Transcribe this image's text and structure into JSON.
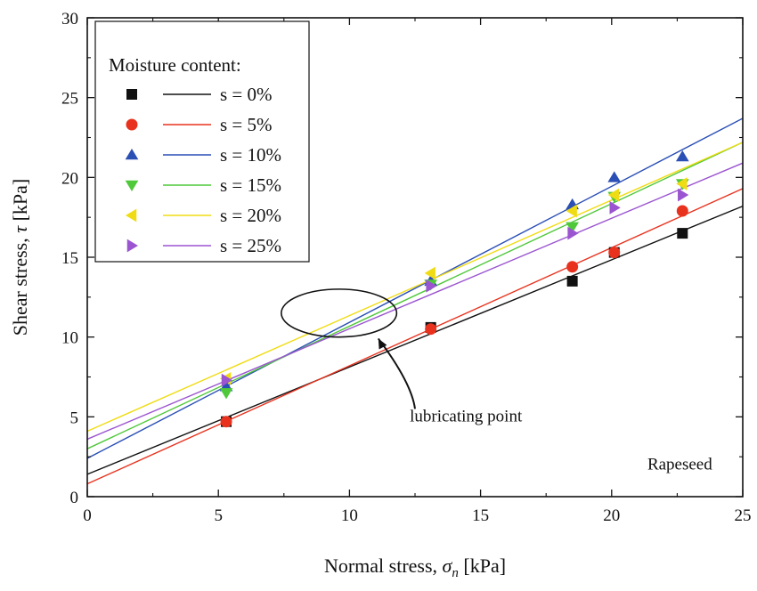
{
  "chart_data": {
    "type": "scatter",
    "title": "",
    "xlabel": "Normal stress, ",
    "xlabel_symbol": "σ",
    "xlabel_sub": "n",
    "xlabel_unit": " [kPa]",
    "ylabel": "Shear stress, ",
    "ylabel_symbol": "τ",
    "ylabel_unit": " [kPa]",
    "xlim": [
      0,
      25
    ],
    "ylim": [
      0,
      30
    ],
    "xticks": [
      0,
      5,
      10,
      15,
      20,
      25
    ],
    "yticks": [
      0,
      5,
      10,
      15,
      20,
      25,
      30
    ],
    "grid": false,
    "legend": {
      "title": "Moisture content:",
      "placement": "top-left"
    },
    "series": [
      {
        "name": "s = 0%",
        "color": "#111111",
        "marker": "square",
        "x": [
          5.3,
          13.1,
          18.5,
          20.1,
          22.7
        ],
        "y": [
          4.7,
          10.6,
          13.5,
          15.3,
          16.5
        ],
        "fit": [
          [
            0,
            1.4
          ],
          [
            25,
            18.2
          ]
        ]
      },
      {
        "name": "s = 5%",
        "color": "#e8321e",
        "marker": "circle",
        "x": [
          5.3,
          13.1,
          18.5,
          20.1,
          22.7
        ],
        "y": [
          4.7,
          10.5,
          14.4,
          15.3,
          17.9
        ],
        "fit": [
          [
            0,
            0.8
          ],
          [
            25,
            19.3
          ]
        ]
      },
      {
        "name": "s = 10%",
        "color": "#2a4fb5",
        "marker": "triangle-up",
        "x": [
          5.3,
          13.1,
          18.5,
          20.1,
          22.7
        ],
        "y": [
          6.9,
          13.5,
          18.3,
          20.0,
          21.3
        ],
        "fit": [
          [
            0,
            2.4
          ],
          [
            25,
            23.7
          ]
        ]
      },
      {
        "name": "s = 15%",
        "color": "#4fc83a",
        "marker": "triangle-down",
        "x": [
          5.3,
          13.1,
          18.5,
          20.1,
          22.7
        ],
        "y": [
          6.5,
          13.3,
          16.9,
          18.8,
          19.6
        ],
        "fit": [
          [
            0,
            3.0
          ],
          [
            25,
            22.2
          ]
        ]
      },
      {
        "name": "s = 20%",
        "color": "#f0dc14",
        "marker": "triangle-left",
        "x": [
          5.3,
          13.1,
          18.5,
          20.1,
          22.7
        ],
        "y": [
          7.4,
          14.0,
          17.9,
          18.9,
          19.6
        ],
        "fit": [
          [
            0,
            4.1
          ],
          [
            25,
            22.2
          ]
        ]
      },
      {
        "name": "s = 25%",
        "color": "#9b55d0",
        "marker": "triangle-right",
        "x": [
          5.3,
          13.1,
          18.5,
          20.1,
          22.7
        ],
        "y": [
          7.3,
          13.2,
          16.5,
          18.1,
          18.9
        ],
        "fit": [
          [
            0,
            3.6
          ],
          [
            25,
            20.9
          ]
        ]
      }
    ],
    "annotations": [
      {
        "text": "lubricating point",
        "ellipse_center": [
          9.6,
          11.5
        ],
        "ellipse_radius": [
          2.2,
          1.5
        ],
        "arrow_tail": [
          12.5,
          5.5
        ],
        "arrow_head": [
          11.1,
          9.9
        ],
        "text_pos": [
          12.3,
          4.7
        ]
      },
      {
        "text": "Rapeseed",
        "pos": [
          22.6,
          1.7
        ]
      }
    ]
  }
}
